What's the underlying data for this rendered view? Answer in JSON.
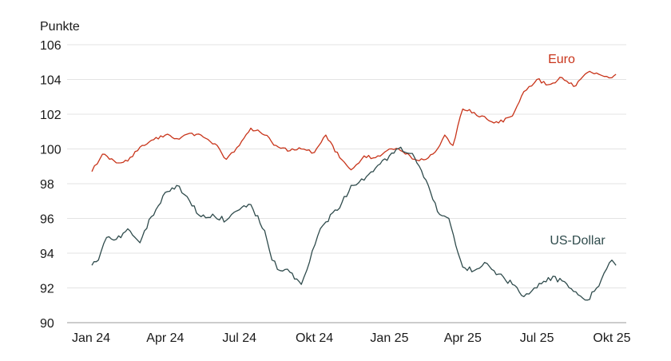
{
  "chart_data": {
    "type": "line",
    "ylabel": "Punkte",
    "ylim": [
      90,
      106
    ],
    "yticks": [
      90,
      92,
      94,
      96,
      98,
      100,
      102,
      104,
      106
    ],
    "xlim": [
      "2024-01-01",
      "2025-10-01"
    ],
    "xticks": [
      {
        "date": "2024-01-01",
        "label": "Jan 24"
      },
      {
        "date": "2024-04-01",
        "label": "Apr 24"
      },
      {
        "date": "2024-07-01",
        "label": "Jul 24"
      },
      {
        "date": "2024-10-01",
        "label": "Okt 24"
      },
      {
        "date": "2025-01-01",
        "label": "Jan 25"
      },
      {
        "date": "2025-04-01",
        "label": "Apr 25"
      },
      {
        "date": "2025-07-01",
        "label": "Jul 25"
      },
      {
        "date": "2025-10-01",
        "label": "Okt 25"
      }
    ],
    "grid": true,
    "series": [
      {
        "name": "Euro",
        "color": "#c8341a",
        "x": [
          "2024-01-02",
          "2024-01-15",
          "2024-02-01",
          "2024-02-15",
          "2024-03-01",
          "2024-03-15",
          "2024-04-01",
          "2024-04-15",
          "2024-05-01",
          "2024-05-15",
          "2024-06-01",
          "2024-06-15",
          "2024-07-01",
          "2024-07-15",
          "2024-08-01",
          "2024-08-15",
          "2024-09-01",
          "2024-09-15",
          "2024-10-01",
          "2024-10-15",
          "2024-11-01",
          "2024-11-15",
          "2024-12-01",
          "2024-12-15",
          "2025-01-01",
          "2025-01-15",
          "2025-02-01",
          "2025-02-15",
          "2025-03-01",
          "2025-03-10",
          "2025-03-20",
          "2025-04-01",
          "2025-04-15",
          "2025-05-01",
          "2025-05-15",
          "2025-06-01",
          "2025-06-15",
          "2025-07-01",
          "2025-07-15",
          "2025-08-01",
          "2025-08-15",
          "2025-09-01",
          "2025-09-15",
          "2025-10-01",
          "2025-10-06"
        ],
        "values": [
          98.7,
          99.7,
          99.2,
          99.3,
          100.1,
          100.5,
          100.8,
          100.6,
          100.9,
          100.8,
          100.3,
          99.4,
          100.2,
          101.2,
          100.8,
          100.2,
          99.9,
          100.0,
          99.8,
          100.8,
          99.5,
          98.8,
          99.6,
          99.5,
          100.0,
          99.9,
          99.4,
          99.4,
          100.0,
          100.8,
          100.2,
          102.3,
          102.1,
          101.7,
          101.5,
          101.9,
          103.3,
          104.0,
          103.7,
          104.1,
          103.6,
          104.4,
          104.3,
          104.1,
          104.3
        ]
      },
      {
        "name": "US-Dollar",
        "color": "#2f4b4c",
        "x": [
          "2024-01-02",
          "2024-01-10",
          "2024-01-20",
          "2024-02-01",
          "2024-02-15",
          "2024-03-01",
          "2024-03-15",
          "2024-04-01",
          "2024-04-15",
          "2024-05-01",
          "2024-05-15",
          "2024-06-01",
          "2024-06-15",
          "2024-07-01",
          "2024-07-15",
          "2024-08-01",
          "2024-08-10",
          "2024-08-20",
          "2024-09-01",
          "2024-09-15",
          "2024-09-25",
          "2024-10-05",
          "2024-10-15",
          "2024-11-01",
          "2024-11-15",
          "2024-12-01",
          "2024-12-15",
          "2025-01-01",
          "2025-01-15",
          "2025-02-01",
          "2025-02-15",
          "2025-03-01",
          "2025-03-15",
          "2025-04-01",
          "2025-04-15",
          "2025-05-01",
          "2025-05-15",
          "2025-06-01",
          "2025-06-15",
          "2025-07-01",
          "2025-07-15",
          "2025-08-01",
          "2025-08-15",
          "2025-09-01",
          "2025-09-15",
          "2025-10-01",
          "2025-10-06"
        ],
        "values": [
          93.3,
          93.6,
          94.9,
          94.8,
          95.4,
          94.6,
          96.1,
          97.5,
          97.9,
          97.0,
          96.1,
          96.1,
          95.9,
          96.5,
          96.8,
          95.3,
          93.6,
          93.0,
          92.9,
          92.2,
          93.5,
          95.0,
          95.8,
          96.6,
          97.9,
          98.2,
          98.9,
          99.6,
          100.1,
          99.5,
          98.2,
          96.4,
          96.0,
          93.2,
          93.0,
          93.4,
          92.8,
          92.2,
          91.5,
          92.0,
          92.6,
          92.4,
          91.8,
          91.3,
          92.1,
          93.6,
          93.3
        ]
      }
    ],
    "annotations": [
      {
        "text": "Euro",
        "series": "Euro"
      },
      {
        "text": "US-Dollar",
        "series": "US-Dollar"
      }
    ]
  }
}
